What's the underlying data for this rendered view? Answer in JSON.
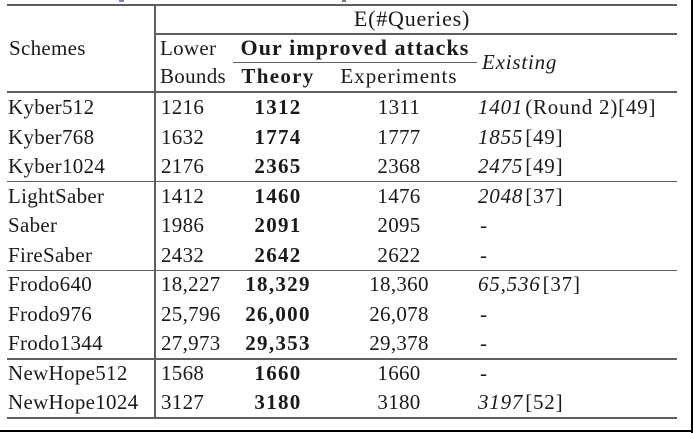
{
  "table": {
    "title": "E(#Queries)",
    "col_schemes": "Schemes",
    "col_lower_line1": "Lower",
    "col_lower_line2": "Bounds",
    "col_improved": "Our improved attacks",
    "col_theory": "Theory",
    "col_experiments": "Experiments",
    "col_existing": "Existing",
    "rows": [
      {
        "scheme": "Kyber512",
        "lower": "1216",
        "theory": "1312",
        "experiments": "1311",
        "existing_num": "1401",
        "existing_ref": "(Round 2)[49]",
        "group": 1
      },
      {
        "scheme": "Kyber768",
        "lower": "1632",
        "theory": "1774",
        "experiments": "1777",
        "existing_num": "1855",
        "existing_ref": "[49]",
        "group": 1
      },
      {
        "scheme": "Kyber1024",
        "lower": "2176",
        "theory": "2365",
        "experiments": "2368",
        "existing_num": "2475",
        "existing_ref": "[49]",
        "group": 1
      },
      {
        "scheme": "LightSaber",
        "lower": "1412",
        "theory": "1460",
        "experiments": "1476",
        "existing_num": "2048",
        "existing_ref": "[37]",
        "group": 2
      },
      {
        "scheme": "Saber",
        "lower": "1986",
        "theory": "2091",
        "experiments": "2095",
        "existing_num": "",
        "existing_ref": "-",
        "group": 2
      },
      {
        "scheme": "FireSaber",
        "lower": "2432",
        "theory": "2642",
        "experiments": "2622",
        "existing_num": "",
        "existing_ref": "-",
        "group": 2
      },
      {
        "scheme": "Frodo640",
        "lower": "18,227",
        "theory": "18,329",
        "experiments": "18,360",
        "existing_num": "65,536",
        "existing_ref": "[37]",
        "group": 3
      },
      {
        "scheme": "Frodo976",
        "lower": "25,796",
        "theory": "26,000",
        "experiments": "26,078",
        "existing_num": "",
        "existing_ref": "-",
        "group": 3
      },
      {
        "scheme": "Frodo1344",
        "lower": "27,973",
        "theory": "29,353",
        "experiments": "29,378",
        "existing_num": "",
        "existing_ref": "-",
        "group": 3
      },
      {
        "scheme": "NewHope512",
        "lower": "1568",
        "theory": "1660",
        "experiments": "1660",
        "existing_num": "",
        "existing_ref": "-",
        "group": 4
      },
      {
        "scheme": "NewHope1024",
        "lower": "3127",
        "theory": "3180",
        "experiments": "3180",
        "existing_num": "3197",
        "existing_ref": "[52]",
        "group": 4
      }
    ]
  },
  "colors": {
    "text": "#1a1a1a",
    "rule": "#5f5f5f",
    "frame_edge": "#000000"
  }
}
